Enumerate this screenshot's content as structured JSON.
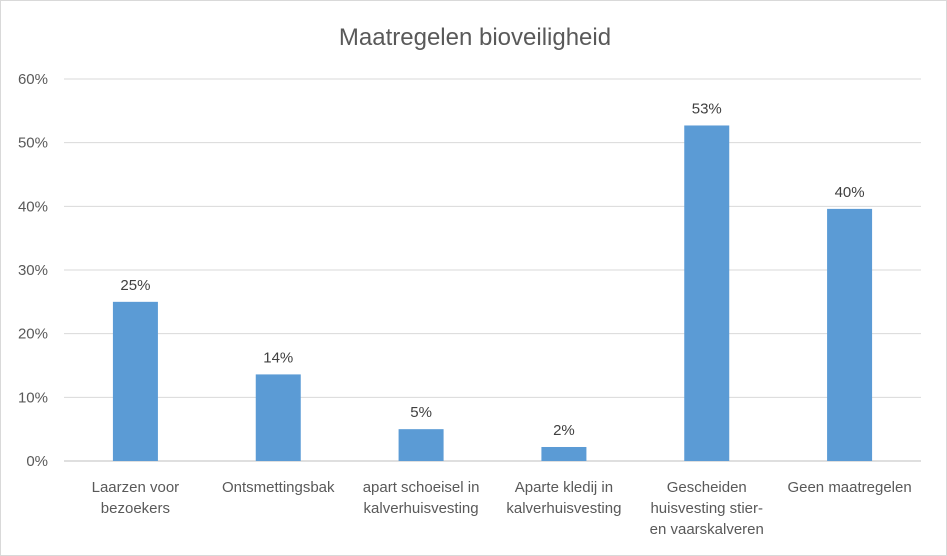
{
  "chart_data": {
    "type": "bar",
    "title": "Maatregelen bioveiligheid",
    "categories": [
      [
        "Laarzen voor",
        "bezoekers"
      ],
      [
        "Ontsmettingsbak"
      ],
      [
        "apart schoeisel in",
        "kalverhuisvesting"
      ],
      [
        "Aparte kledij in",
        "kalverhuisvesting"
      ],
      [
        "Gescheiden",
        "huisvesting stier-",
        "en vaarskalveren"
      ],
      [
        "Geen maatregelen"
      ]
    ],
    "values": [
      25,
      13.6,
      5,
      2.2,
      52.7,
      39.6
    ],
    "data_labels": [
      "25%",
      "14%",
      "5%",
      "2%",
      "53%",
      "40%"
    ],
    "ylim": [
      0,
      60
    ],
    "yticks": [
      0,
      10,
      20,
      30,
      40,
      50,
      60
    ],
    "ytick_labels": [
      "0%",
      "10%",
      "20%",
      "30%",
      "40%",
      "50%",
      "60%"
    ],
    "grid": true,
    "colors": {
      "bar": "#5b9bd5"
    }
  }
}
